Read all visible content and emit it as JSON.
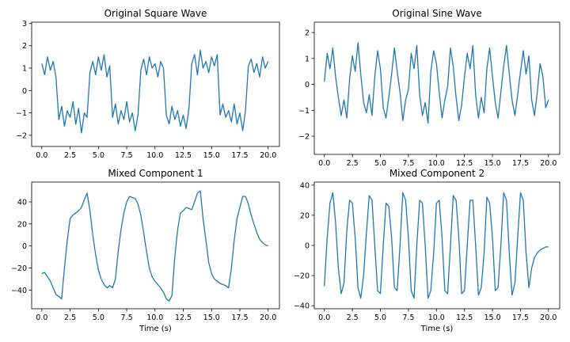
{
  "chart_data": [
    {
      "type": "line",
      "title": "Original Square Wave",
      "xlabel": "",
      "ylabel": "",
      "xlim": [
        -0.9,
        21.0
      ],
      "ylim": [
        -2.5,
        3.05
      ],
      "xticks": [
        0,
        2.5,
        5,
        7.5,
        10,
        12.5,
        15,
        17.5,
        20
      ],
      "xtick_labels": [
        "0.0",
        "2.5",
        "5.0",
        "7.5",
        "10.0",
        "12.5",
        "15.0",
        "17.5",
        "20.0"
      ],
      "yticks": [
        -2,
        -1,
        0,
        1,
        2,
        3
      ],
      "ytick_labels": [
        "−2",
        "−1",
        "0",
        "1",
        "2",
        "3"
      ],
      "grid": false,
      "series": [
        {
          "color": "#1f77b4",
          "x": [
            0,
            0.25,
            0.5,
            0.75,
            1.0,
            1.25,
            1.5,
            1.75,
            2.0,
            2.25,
            2.5,
            2.75,
            3.0,
            3.25,
            3.5,
            3.75,
            4.0,
            4.25,
            4.5,
            4.75,
            5.0,
            5.25,
            5.5,
            5.75,
            6.0,
            6.25,
            6.5,
            6.75,
            7.0,
            7.25,
            7.5,
            7.75,
            8.0,
            8.25,
            8.5,
            8.75,
            9.0,
            9.25,
            9.5,
            9.75,
            10.0,
            10.25,
            10.5,
            10.75,
            11.0,
            11.25,
            11.5,
            11.75,
            12.0,
            12.25,
            12.5,
            12.75,
            13.0,
            13.25,
            13.5,
            13.75,
            14.0,
            14.25,
            14.5,
            14.75,
            15.0,
            15.25,
            15.5,
            15.75,
            16.0,
            16.25,
            16.5,
            16.75,
            17.0,
            17.25,
            17.5,
            17.75,
            18.0,
            18.25,
            18.5,
            18.75,
            19.0,
            19.25,
            19.5,
            19.75,
            20.0
          ],
          "y": [
            1.2,
            0.7,
            1.5,
            0.9,
            1.3,
            0.6,
            -1.3,
            -0.7,
            -1.6,
            -0.9,
            -1.2,
            -0.5,
            -1.5,
            -0.8,
            -1.9,
            -1.0,
            -1.2,
            0.8,
            1.3,
            0.7,
            1.5,
            0.9,
            1.6,
            0.6,
            1.1,
            -1.2,
            -0.6,
            -1.5,
            -0.9,
            -1.3,
            -0.5,
            -1.4,
            -1.0,
            -1.8,
            -1.1,
            0.9,
            1.4,
            0.7,
            1.5,
            1.0,
            1.2,
            0.6,
            1.3,
            1.0,
            -1.1,
            -1.5,
            -0.7,
            -1.3,
            -0.9,
            -1.6,
            -1.1,
            -1.7,
            -0.8,
            1.2,
            1.6,
            0.7,
            1.8,
            1.0,
            1.3,
            0.8,
            1.5,
            1.1,
            1.6,
            -1.1,
            -0.6,
            -1.2,
            -0.9,
            -1.4,
            -0.6,
            -1.5,
            -1.0,
            -1.8,
            -0.9,
            1.1,
            1.4,
            0.8,
            1.2,
            0.6,
            1.5,
            1.0,
            1.3
          ]
        }
      ]
    },
    {
      "type": "line",
      "title": "Original Sine Wave",
      "xlabel": "",
      "ylabel": "",
      "xlim": [
        -0.9,
        21.0
      ],
      "ylim": [
        -2.7,
        2.4
      ],
      "xticks": [
        0,
        2.5,
        5,
        7.5,
        10,
        12.5,
        15,
        17.5,
        20
      ],
      "xtick_labels": [
        "0.0",
        "2.5",
        "5.0",
        "7.5",
        "10.0",
        "12.5",
        "15.0",
        "17.5",
        "20.0"
      ],
      "yticks": [
        -2,
        -1,
        0,
        1,
        2
      ],
      "ytick_labels": [
        "−2",
        "−1",
        "0",
        "1",
        "2"
      ],
      "grid": false,
      "series": [
        {
          "color": "#1f77b4",
          "x": [
            0,
            0.25,
            0.5,
            0.75,
            1.0,
            1.25,
            1.5,
            1.75,
            2.0,
            2.25,
            2.5,
            2.75,
            3.0,
            3.25,
            3.5,
            3.75,
            4.0,
            4.25,
            4.5,
            4.75,
            5.0,
            5.25,
            5.5,
            5.75,
            6.0,
            6.25,
            6.5,
            6.75,
            7.0,
            7.25,
            7.5,
            7.75,
            8.0,
            8.25,
            8.5,
            8.75,
            9.0,
            9.25,
            9.5,
            9.75,
            10.0,
            10.25,
            10.5,
            10.75,
            11.0,
            11.25,
            11.5,
            11.75,
            12.0,
            12.25,
            12.5,
            12.75,
            13.0,
            13.25,
            13.5,
            13.75,
            14.0,
            14.25,
            14.5,
            14.75,
            15.0,
            15.25,
            15.5,
            15.75,
            16.0,
            16.25,
            16.5,
            16.75,
            17.0,
            17.25,
            17.5,
            17.75,
            18.0,
            18.25,
            18.5,
            18.75,
            19.0,
            19.25,
            19.5,
            19.75,
            20.0
          ],
          "y": [
            0.1,
            1.2,
            0.6,
            1.4,
            0.3,
            -0.5,
            -1.2,
            -0.6,
            -1.3,
            0.2,
            1.1,
            0.5,
            1.6,
            0.4,
            -0.7,
            -1.1,
            -0.4,
            -1.2,
            0.3,
            1.3,
            0.6,
            -0.9,
            -1.3,
            -0.5,
            0.4,
            1.4,
            0.5,
            -0.3,
            -1.4,
            -0.6,
            -0.2,
            1.2,
            0.6,
            1.5,
            -0.4,
            -1.2,
            -0.7,
            -1.5,
            0.5,
            1.3,
            0.8,
            -0.3,
            -1.3,
            -0.6,
            -0.1,
            1.4,
            0.7,
            -0.5,
            -1.4,
            -0.8,
            0.3,
            1.2,
            0.6,
            1.5,
            -0.4,
            -1.3,
            -0.5,
            -1.1,
            0.6,
            1.4,
            0.3,
            -0.7,
            -1.3,
            -0.3,
            0.7,
            1.5,
            0.4,
            -0.6,
            -1.2,
            -0.4,
            0.5,
            1.3,
            0.4,
            1.1,
            -0.6,
            -1.2,
            -0.3,
            0.8,
            0.3,
            -0.9,
            -0.6
          ]
        }
      ]
    },
    {
      "type": "line",
      "title": "Mixed Component 1",
      "xlabel": "Time (s)",
      "ylabel": "",
      "xlim": [
        -0.9,
        21.0
      ],
      "ylim": [
        -57,
        58
      ],
      "xticks": [
        0,
        2.5,
        5,
        7.5,
        10,
        12.5,
        15,
        17.5,
        20
      ],
      "xtick_labels": [
        "0.0",
        "2.5",
        "5.0",
        "7.5",
        "10.0",
        "12.5",
        "15.0",
        "17.5",
        "20.0"
      ],
      "yticks": [
        -40,
        -20,
        0,
        20,
        40
      ],
      "ytick_labels": [
        "−40",
        "−20",
        "0",
        "20",
        "40"
      ],
      "grid": false,
      "series": [
        {
          "color": "#1f77b4",
          "x": [
            0,
            0.25,
            0.5,
            0.75,
            1.0,
            1.25,
            1.5,
            1.75,
            2.0,
            2.25,
            2.5,
            2.75,
            3.0,
            3.25,
            3.5,
            3.75,
            4.0,
            4.25,
            4.5,
            4.75,
            5.0,
            5.25,
            5.5,
            5.75,
            6.0,
            6.25,
            6.5,
            6.75,
            7.0,
            7.25,
            7.5,
            7.75,
            8.0,
            8.25,
            8.5,
            8.75,
            9.0,
            9.25,
            9.5,
            9.75,
            10.0,
            10.25,
            10.5,
            10.75,
            11.0,
            11.25,
            11.5,
            11.75,
            12.0,
            12.25,
            12.5,
            12.75,
            13.0,
            13.25,
            13.5,
            13.75,
            14.0,
            14.25,
            14.5,
            14.75,
            15.0,
            15.25,
            15.5,
            15.75,
            16.0,
            16.25,
            16.5,
            16.75,
            17.0,
            17.25,
            17.5,
            17.75,
            18.0,
            18.25,
            18.5,
            18.75,
            19.0,
            19.25,
            19.5,
            19.75,
            20.0
          ],
          "y": [
            -25,
            -24,
            -28,
            -32,
            -38,
            -44,
            -46,
            -48,
            -20,
            5,
            25,
            28,
            30,
            32,
            35,
            42,
            48,
            32,
            10,
            -8,
            -22,
            -30,
            -35,
            -38,
            -36,
            -38,
            -30,
            -5,
            15,
            30,
            40,
            45,
            44,
            43,
            38,
            28,
            12,
            -5,
            -20,
            -28,
            -32,
            -35,
            -38,
            -42,
            -48,
            -50,
            -45,
            -10,
            15,
            30,
            32,
            35,
            34,
            33,
            40,
            48,
            50,
            25,
            5,
            -15,
            -25,
            -30,
            -32,
            -34,
            -35,
            -36,
            -38,
            -20,
            5,
            25,
            35,
            45,
            45,
            38,
            28,
            20,
            12,
            6,
            3,
            1,
            0
          ]
        }
      ]
    },
    {
      "type": "line",
      "title": "Mixed Component 2",
      "xlabel": "Time (s)",
      "ylabel": "",
      "xlim": [
        -0.9,
        21.0
      ],
      "ylim": [
        -42,
        42
      ],
      "xticks": [
        0,
        2.5,
        5,
        7.5,
        10,
        12.5,
        15,
        17.5,
        20
      ],
      "xtick_labels": [
        "0.0",
        "2.5",
        "5.0",
        "7.5",
        "10.0",
        "12.5",
        "15.0",
        "17.5",
        "20.0"
      ],
      "yticks": [
        -40,
        -20,
        0,
        20,
        40
      ],
      "ytick_labels": [
        "−40",
        "−20",
        "0",
        "20",
        "40"
      ],
      "grid": false,
      "series": [
        {
          "color": "#1f77b4",
          "x": [
            0,
            0.25,
            0.5,
            0.75,
            1.0,
            1.25,
            1.5,
            1.75,
            2.0,
            2.25,
            2.5,
            2.75,
            3.0,
            3.25,
            3.5,
            3.75,
            4.0,
            4.25,
            4.5,
            4.75,
            5.0,
            5.25,
            5.5,
            5.75,
            6.0,
            6.25,
            6.5,
            6.75,
            7.0,
            7.25,
            7.5,
            7.75,
            8.0,
            8.25,
            8.5,
            8.75,
            9.0,
            9.25,
            9.5,
            9.75,
            10.0,
            10.25,
            10.5,
            10.75,
            11.0,
            11.25,
            11.5,
            11.75,
            12.0,
            12.25,
            12.5,
            12.75,
            13.0,
            13.25,
            13.5,
            13.75,
            14.0,
            14.25,
            14.5,
            14.75,
            15.0,
            15.25,
            15.5,
            15.75,
            16.0,
            16.25,
            16.5,
            16.75,
            17.0,
            17.25,
            17.5,
            17.75,
            18.0,
            18.25,
            18.5,
            18.75,
            19.0,
            19.25,
            19.5,
            19.75,
            20.0
          ],
          "y": [
            -27,
            5,
            28,
            35,
            15,
            -15,
            -32,
            -25,
            10,
            30,
            28,
            5,
            -28,
            -35,
            -20,
            8,
            33,
            30,
            0,
            -30,
            -32,
            0,
            28,
            26,
            5,
            -28,
            -30,
            0,
            35,
            30,
            5,
            -30,
            -35,
            0,
            30,
            28,
            0,
            -35,
            -30,
            -5,
            28,
            30,
            5,
            -30,
            -32,
            0,
            33,
            30,
            5,
            -32,
            -30,
            0,
            30,
            30,
            0,
            -33,
            -28,
            -5,
            32,
            28,
            5,
            -30,
            -28,
            0,
            35,
            30,
            -5,
            -33,
            -25,
            5,
            35,
            30,
            -5,
            -28,
            -15,
            -8,
            -5,
            -3,
            -2,
            -1,
            -1
          ]
        }
      ]
    }
  ]
}
